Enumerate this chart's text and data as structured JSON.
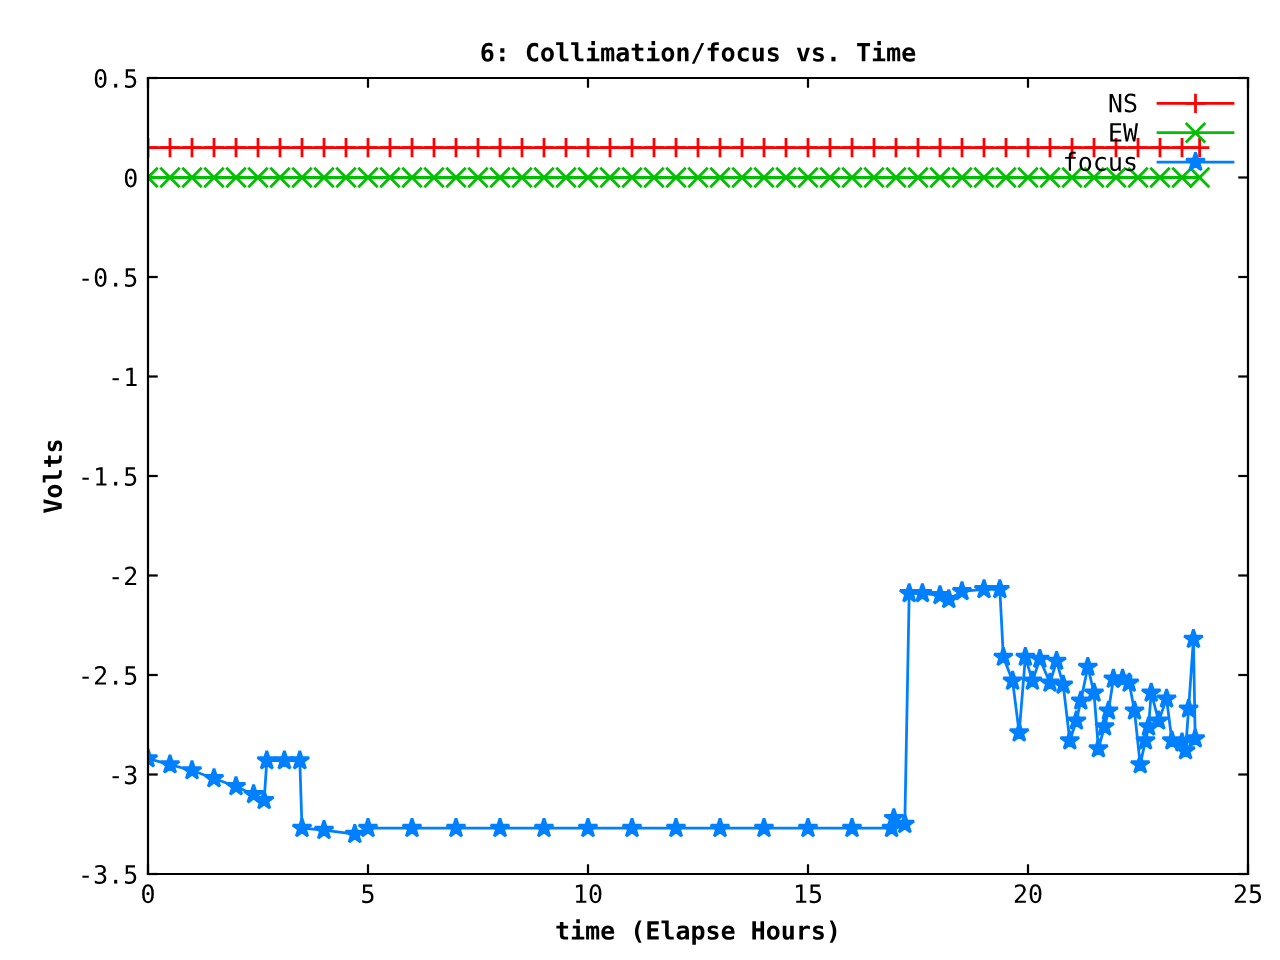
{
  "chart_data": {
    "type": "line",
    "title": "6: Collimation/focus vs. Time",
    "xlabel": "time (Elapse Hours)",
    "ylabel": "Volts",
    "xlim": [
      0,
      25
    ],
    "xticks": [
      0,
      5,
      10,
      15,
      20,
      25
    ],
    "ylim": [
      -3.5,
      0.5
    ],
    "yticks": [
      0.5,
      0,
      -0.5,
      -1,
      -1.5,
      -2,
      -2.5,
      -3,
      -3.5
    ],
    "grid": false,
    "legend": "top right",
    "series": [
      {
        "name": "NS",
        "color": "#ff0000",
        "marker": "cross",
        "x": [
          0,
          0.5,
          1,
          1.5,
          2,
          2.5,
          3,
          3.5,
          4,
          4.5,
          5,
          5.5,
          6,
          6.5,
          7,
          7.5,
          8,
          8.5,
          9,
          9.5,
          10,
          10.5,
          11,
          11.5,
          12,
          12.5,
          13,
          13.5,
          14,
          14.5,
          15,
          15.5,
          16,
          16.5,
          17,
          17.5,
          18,
          18.5,
          19,
          19.5,
          20,
          20.5,
          21,
          21.5,
          22,
          22.5,
          23,
          23.5,
          23.9
        ],
        "values": [
          0.15,
          0.15,
          0.15,
          0.15,
          0.15,
          0.15,
          0.15,
          0.15,
          0.15,
          0.15,
          0.15,
          0.15,
          0.15,
          0.15,
          0.15,
          0.15,
          0.15,
          0.15,
          0.15,
          0.15,
          0.15,
          0.15,
          0.15,
          0.15,
          0.15,
          0.15,
          0.15,
          0.15,
          0.15,
          0.15,
          0.15,
          0.15,
          0.15,
          0.15,
          0.15,
          0.15,
          0.15,
          0.15,
          0.15,
          0.15,
          0.15,
          0.15,
          0.15,
          0.15,
          0.15,
          0.15,
          0.15,
          0.15,
          0.15
        ]
      },
      {
        "name": "EW",
        "color": "#00c000",
        "marker": "x",
        "x": [
          0,
          0.5,
          1,
          1.5,
          2,
          2.5,
          3,
          3.5,
          4,
          4.5,
          5,
          5.5,
          6,
          6.5,
          7,
          7.5,
          8,
          8.5,
          9,
          9.5,
          10,
          10.5,
          11,
          11.5,
          12,
          12.5,
          13,
          13.5,
          14,
          14.5,
          15,
          15.5,
          16,
          16.5,
          17,
          17.5,
          18,
          18.5,
          19,
          19.5,
          20,
          20.5,
          21,
          21.5,
          22,
          22.5,
          23,
          23.5,
          23.9
        ],
        "values": [
          0,
          0,
          0,
          0,
          0,
          0,
          0,
          0,
          0,
          0,
          0,
          0,
          0,
          0,
          0,
          0,
          0,
          0,
          0,
          0,
          0,
          0,
          0,
          0,
          0,
          0,
          0,
          0,
          0,
          0,
          0,
          0,
          0,
          0,
          0,
          0,
          0,
          0,
          0,
          0,
          0,
          0,
          0,
          0,
          0,
          0,
          0,
          0,
          0
        ]
      },
      {
        "name": "focus",
        "color": "#0080ff",
        "marker": "star",
        "x": [
          0,
          0.5,
          1,
          1.5,
          2,
          2.4,
          2.64,
          2.7,
          3.1,
          3.45,
          3.5,
          4,
          4.7,
          5,
          6,
          7,
          8,
          9,
          10,
          11,
          12,
          13,
          14,
          15,
          16,
          16.9,
          16.95,
          17.2,
          17.3,
          17.6,
          18,
          18.2,
          18.5,
          19,
          19.36,
          19.44,
          19.65,
          19.8,
          19.94,
          20.1,
          20.27,
          20.5,
          20.65,
          20.8,
          20.95,
          21.1,
          21.2,
          21.36,
          21.5,
          21.6,
          21.74,
          21.83,
          21.94,
          22.15,
          22.3,
          22.42,
          22.55,
          22.67,
          22.74,
          22.8,
          22.97,
          23.15,
          23.27,
          23.5,
          23.58,
          23.65,
          23.76,
          23.8
        ],
        "values": [
          -2.92,
          -2.95,
          -2.98,
          -3.02,
          -3.06,
          -3.1,
          -3.13,
          -2.93,
          -2.93,
          -2.93,
          -3.27,
          -3.28,
          -3.3,
          -3.27,
          -3.27,
          -3.27,
          -3.27,
          -3.27,
          -3.27,
          -3.27,
          -3.27,
          -3.27,
          -3.27,
          -3.27,
          -3.27,
          -3.27,
          -3.22,
          -3.25,
          -2.09,
          -2.09,
          -2.1,
          -2.12,
          -2.08,
          -2.07,
          -2.07,
          -2.41,
          -2.53,
          -2.79,
          -2.41,
          -2.53,
          -2.42,
          -2.54,
          -2.43,
          -2.55,
          -2.83,
          -2.73,
          -2.63,
          -2.46,
          -2.59,
          -2.87,
          -2.76,
          -2.68,
          -2.52,
          -2.52,
          -2.54,
          -2.68,
          -2.95,
          -2.83,
          -2.76,
          -2.59,
          -2.73,
          -2.62,
          -2.83,
          -2.84,
          -2.88,
          -2.67,
          -2.32,
          -2.82
        ]
      }
    ]
  }
}
